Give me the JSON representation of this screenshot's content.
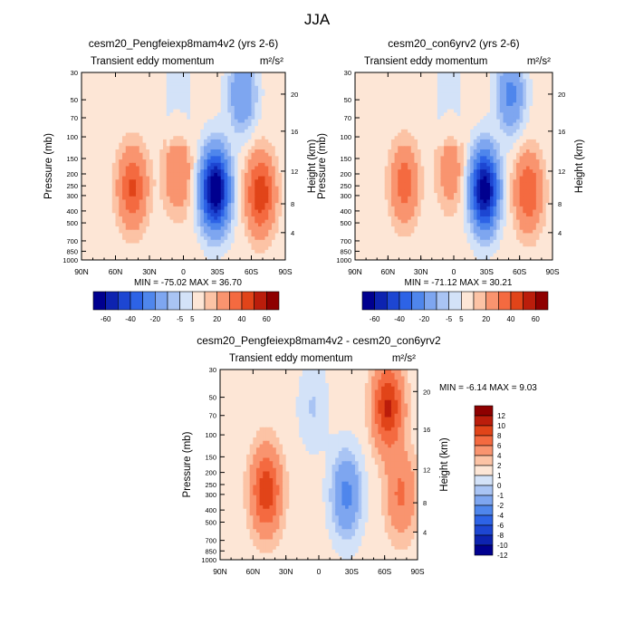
{
  "figure": {
    "title": "JJA",
    "colors": {
      "panel_scale": [
        "#00008f",
        "#0d23b0",
        "#1d46d2",
        "#2d63e6",
        "#4f86ec",
        "#7ea6f0",
        "#a9c4f4",
        "#d3e2f8",
        "#fde6d6",
        "#fcc3a5",
        "#f9946f",
        "#f46a40",
        "#e14419",
        "#bb1d0b",
        "#8e0000"
      ],
      "diff_scale": [
        "#00008f",
        "#0d23b0",
        "#1d46d2",
        "#2d63e6",
        "#4f86ec",
        "#7ea6f0",
        "#a9c4f4",
        "#d3e2f8",
        "#fde6d6",
        "#fcc3a5",
        "#f9946f",
        "#f46a40",
        "#e14419",
        "#bb1d0b",
        "#8e0000"
      ]
    }
  },
  "chart_data": [
    {
      "type": "heatmap",
      "title": "cesm20_Pengfeiexp8mam4v2 (yrs 2-6)",
      "subtitle_left": "Transient eddy momentum",
      "units": "m²/s²",
      "ylabel": "Pressure (mb)",
      "ylabel_right": "Height (km)",
      "x_ticks": [
        "90N",
        "60N",
        "30N",
        "0",
        "30S",
        "60S",
        "90S"
      ],
      "y_ticks": [
        "30",
        "50",
        "70",
        "100",
        "150",
        "200",
        "250",
        "300",
        "400",
        "500",
        "700",
        "850",
        "1000"
      ],
      "y_right_ticks": [
        "20",
        "16",
        "12",
        "8",
        "4"
      ],
      "ylim": [
        1000,
        30
      ],
      "xlim": [
        90,
        -90
      ],
      "stats": "MIN = -75.02  MAX =  36.70",
      "colorbar_labels": [
        "-60",
        "-40",
        "-20",
        "-5",
        "5",
        "20",
        "40",
        "60"
      ],
      "features": [
        {
          "lat": 45,
          "p": 260,
          "value": 30
        },
        {
          "lat": 5,
          "p": 200,
          "value": 18
        },
        {
          "lat": -28,
          "p": 270,
          "value": -75
        },
        {
          "lat": -68,
          "p": 290,
          "value": 36
        },
        {
          "lat": -52,
          "p": 45,
          "value": -22
        }
      ]
    },
    {
      "type": "heatmap",
      "title": "cesm20_con6yrv2 (yrs 2-6)",
      "subtitle_left": "Transient eddy momentum",
      "units": "m²/s²",
      "ylabel": "Pressure (mb)",
      "ylabel_right": "Height (km)",
      "x_ticks": [
        "90N",
        "60N",
        "30N",
        "0",
        "30S",
        "60S",
        "90S"
      ],
      "y_ticks": [
        "30",
        "50",
        "70",
        "100",
        "150",
        "200",
        "250",
        "300",
        "400",
        "500",
        "700",
        "850",
        "1000"
      ],
      "y_right_ticks": [
        "20",
        "16",
        "12",
        "8",
        "4"
      ],
      "ylim": [
        1000,
        30
      ],
      "xlim": [
        90,
        -90
      ],
      "stats": "MIN = -71.12  MAX =  30.21",
      "colorbar_labels": [
        "-60",
        "-40",
        "-20",
        "-5",
        "5",
        "20",
        "40",
        "60"
      ],
      "features": [
        {
          "lat": 45,
          "p": 240,
          "value": 24
        },
        {
          "lat": 3,
          "p": 190,
          "value": 14
        },
        {
          "lat": -28,
          "p": 270,
          "value": -71
        },
        {
          "lat": -68,
          "p": 280,
          "value": 28
        },
        {
          "lat": -52,
          "p": 45,
          "value": -25
        }
      ]
    },
    {
      "type": "heatmap",
      "title": "cesm20_Pengfeiexp8mam4v2 - cesm20_con6yrv2",
      "subtitle_left": "Transient eddy momentum",
      "units": "m²/s²",
      "ylabel": "Pressure (mb)",
      "ylabel_right": "Height (km)",
      "x_ticks": [
        "90N",
        "60N",
        "30N",
        "0",
        "30S",
        "60S",
        "90S"
      ],
      "y_ticks": [
        "30",
        "50",
        "70",
        "100",
        "150",
        "200",
        "250",
        "300",
        "400",
        "500",
        "700",
        "850",
        "1000"
      ],
      "y_right_ticks": [
        "20",
        "16",
        "12",
        "8",
        "4"
      ],
      "ylim": [
        1000,
        30
      ],
      "xlim": [
        90,
        -90
      ],
      "stats": "MIN = -6.14  MAX =  9.03",
      "colorbar_labels": [
        "12",
        "10",
        "8",
        "6",
        "4",
        "2",
        "1",
        "0",
        "-1",
        "-2",
        "-4",
        "-6",
        "-8",
        "-10",
        "-12"
      ],
      "features": [
        {
          "lat": 48,
          "p": 280,
          "value": 7
        },
        {
          "lat": -25,
          "p": 300,
          "value": -5
        },
        {
          "lat": -63,
          "p": 60,
          "value": 8
        },
        {
          "lat": -75,
          "p": 300,
          "value": 4
        },
        {
          "lat": 5,
          "p": 60,
          "value": -1.5
        }
      ]
    }
  ]
}
